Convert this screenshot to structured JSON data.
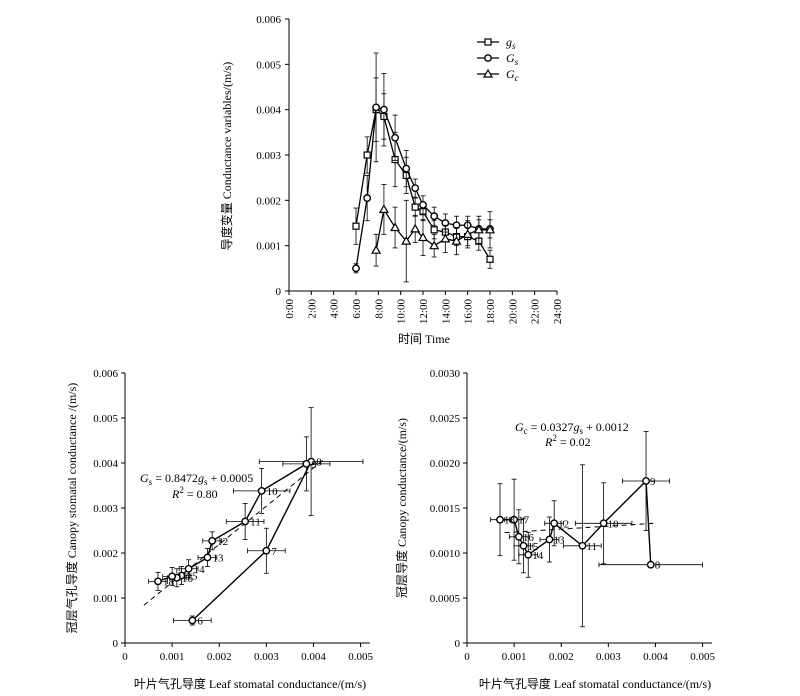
{
  "chart_data": [
    {
      "id": "top",
      "type": "line",
      "ylabel": "导度变量 Conductance variables/(m/s)",
      "xlabel": "时间 Time",
      "x_ticks": [
        "0:00",
        "2:00",
        "4:00",
        "6:00",
        "8:00",
        "10:00",
        "12:00",
        "14:00",
        "16:00",
        "18:00",
        "20:00",
        "22:00",
        "24:00"
      ],
      "y_ticks": [
        "0",
        "0.001",
        "0.002",
        "0.003",
        "0.004",
        "0.005",
        "0.006"
      ],
      "xlim": [
        0,
        24
      ],
      "ylim": [
        0,
        0.006
      ],
      "legend_position": "top-right",
      "series": [
        {
          "name": "gs",
          "name_main": "g",
          "name_sub": "s",
          "marker": "square",
          "x": [
            6,
            7,
            7.8,
            8.5,
            9.5,
            10.5,
            11.3,
            12,
            13,
            14,
            15,
            16,
            17,
            18
          ],
          "y": [
            0.00143,
            0.003,
            0.004,
            0.00385,
            0.0029,
            0.00255,
            0.00185,
            0.00175,
            0.00135,
            0.0013,
            0.0012,
            0.0012,
            0.0011,
            0.0007
          ]
        },
        {
          "name": "Gs",
          "name_main": "G",
          "name_sub": "s",
          "marker": "circle",
          "x": [
            6,
            7,
            7.8,
            8.5,
            9.5,
            10.5,
            11.3,
            12,
            13,
            14,
            15,
            16,
            17,
            18
          ],
          "y": [
            0.0005,
            0.00205,
            0.00405,
            0.004,
            0.00338,
            0.0027,
            0.00227,
            0.0019,
            0.00165,
            0.0015,
            0.00145,
            0.00145,
            0.00137,
            0.00137
          ]
        },
        {
          "name": "Gc",
          "name_main": "G",
          "name_sub": "c",
          "marker": "triangle",
          "x": [
            7.8,
            8.5,
            9.5,
            10.5,
            11.3,
            12,
            13,
            14,
            15,
            16,
            17,
            18
          ],
          "y": [
            0.0009,
            0.0018,
            0.0014,
            0.0011,
            0.00137,
            0.00118,
            0.001,
            0.00115,
            0.0011,
            0.00125,
            0.00135,
            0.00135
          ],
          "err": [
            0.00035,
            0.00055,
            0.00045,
            0.0009,
            0.0003,
            0.0004,
            0.00025,
            0.0003,
            0.0003,
            0.0003,
            0.0003,
            0.0004
          ]
        }
      ],
      "gs_err": [
        0.0004,
        0.0004,
        0.0007,
        0.0005,
        0.0006,
        0.0004,
        0.0002,
        0.0002,
        0.0002,
        0.0002,
        0.0002,
        0.0002,
        0.0002,
        0.0002
      ],
      "Gs_err": [
        0.0001,
        0.0005,
        0.0012,
        0.0008,
        0.0005,
        0.0004,
        0.0002,
        0.0002,
        0.0002,
        0.0002,
        0.0002,
        0.0002,
        0.0002,
        0.0002
      ]
    },
    {
      "id": "bottom-left",
      "type": "scatter",
      "ylabel": "冠层气孔导度 Canopy stomatal conductance /(m/s)",
      "xlabel": "叶片气孔导度 Leaf stomatal conductance/(m/s)",
      "x_ticks": [
        "0",
        "0.001",
        "0.002",
        "0.003",
        "0.004",
        "0.005"
      ],
      "y_ticks": [
        "0",
        "0.001",
        "0.002",
        "0.003",
        "0.004",
        "0.005",
        "0.006"
      ],
      "xlim": [
        0,
        0.0052
      ],
      "ylim": [
        0,
        0.006
      ],
      "equation": {
        "lhs_main": "G",
        "lhs_sub": "s",
        "mid": " = 0.8472",
        "rhs_main": "g",
        "rhs_sub": "s",
        "tail": " + 0.0005"
      },
      "r2": {
        "main": "R",
        "sup": "2",
        "tail": " = 0.80"
      },
      "trend": {
        "slope": 0.8472,
        "intercept": 0.0005,
        "x_range": [
          0.0004,
          0.0042
        ]
      },
      "points": [
        {
          "label": "6",
          "x": 0.00143,
          "y": 0.0005,
          "xerr": 0.0004,
          "yerr": 0.0001
        },
        {
          "label": "7",
          "x": 0.003,
          "y": 0.00205,
          "xerr": 0.0004,
          "yerr": 0.0005
        },
        {
          "label": "8",
          "x": 0.00395,
          "y": 0.00403,
          "xerr": 0.0011,
          "yerr": 0.0012
        },
        {
          "label": "9",
          "x": 0.00385,
          "y": 0.00398,
          "xerr": 0.0005,
          "yerr": 0.0006
        },
        {
          "label": "10",
          "x": 0.0029,
          "y": 0.00338,
          "xerr": 0.0006,
          "yerr": 0.0005
        },
        {
          "label": "11",
          "x": 0.00255,
          "y": 0.0027,
          "xerr": 0.0004,
          "yerr": 0.0004
        },
        {
          "label": "12",
          "x": 0.00185,
          "y": 0.00227,
          "xerr": 0.0002,
          "yerr": 0.0002
        },
        {
          "label": "13",
          "x": 0.00175,
          "y": 0.0019,
          "xerr": 0.0002,
          "yerr": 0.0002
        },
        {
          "label": "14",
          "x": 0.00135,
          "y": 0.00165,
          "xerr": 0.0002,
          "yerr": 0.0002
        },
        {
          "label": "15",
          "x": 0.0012,
          "y": 0.0015,
          "xerr": 0.0002,
          "yerr": 0.0002
        },
        {
          "label": "16",
          "x": 0.0011,
          "y": 0.00145,
          "xerr": 0.0002,
          "yerr": 0.0002
        },
        {
          "label": "17",
          "x": 0.001,
          "y": 0.00148,
          "xerr": 0.0002,
          "yerr": 0.0002
        },
        {
          "label": "18",
          "x": 0.0007,
          "y": 0.00137,
          "xerr": 0.0002,
          "yerr": 0.0002
        }
      ],
      "path_order": [
        "6",
        "7",
        "8",
        "9",
        "10",
        "11",
        "12",
        "13",
        "14",
        "15",
        "16",
        "17",
        "18"
      ]
    },
    {
      "id": "bottom-right",
      "type": "scatter",
      "ylabel": "冠层导度 Canopy conductance/(m/s)",
      "xlabel": "叶片气孔导度 Leaf stomatal conductance/(m/s)",
      "x_ticks": [
        "0",
        "0.001",
        "0.002",
        "0.003",
        "0.004",
        "0.005"
      ],
      "y_ticks": [
        "0",
        "0.0005",
        "0.0010",
        "0.0015",
        "0.0020",
        "0.0025",
        "0.0030"
      ],
      "xlim": [
        0,
        0.0052
      ],
      "ylim": [
        0,
        0.003
      ],
      "equation": {
        "lhs_main": "G",
        "lhs_sub": "c",
        "mid": " = 0.0327",
        "rhs_main": "g",
        "rhs_sub": "s",
        "tail": " + 0.0012"
      },
      "r2": {
        "main": "R",
        "sup": "2",
        "tail": " = 0.02"
      },
      "trend": {
        "slope": 0.0327,
        "intercept": 0.0012,
        "x_range": [
          0.0008,
          0.004
        ]
      },
      "points": [
        {
          "label": "8",
          "x": 0.0039,
          "y": 0.00087,
          "xerr": 0.0011,
          "yerr": 0.0
        },
        {
          "label": "9",
          "x": 0.0038,
          "y": 0.0018,
          "xerr": 0.0005,
          "yerr": 0.00055
        },
        {
          "label": "10",
          "x": 0.0029,
          "y": 0.00133,
          "xerr": 0.0006,
          "yerr": 0.00045
        },
        {
          "label": "11",
          "x": 0.00245,
          "y": 0.00108,
          "xerr": 0.0004,
          "yerr": 0.0009
        },
        {
          "label": "12",
          "x": 0.00185,
          "y": 0.00133,
          "xerr": 0.0002,
          "yerr": 0.00025
        },
        {
          "label": "13",
          "x": 0.00175,
          "y": 0.00115,
          "xerr": 0.0002,
          "yerr": 0.00025
        },
        {
          "label": "14",
          "x": 0.0013,
          "y": 0.00098,
          "xerr": 0.0002,
          "yerr": 0.00025
        },
        {
          "label": "15",
          "x": 0.0012,
          "y": 0.00108,
          "xerr": 0.0002,
          "yerr": 0.0003
        },
        {
          "label": "16",
          "x": 0.0011,
          "y": 0.00118,
          "xerr": 0.0002,
          "yerr": 0.0003
        },
        {
          "label": "17",
          "x": 0.001,
          "y": 0.00137,
          "xerr": 0.0002,
          "yerr": 0.00045
        },
        {
          "label": "18",
          "x": 0.0007,
          "y": 0.00137,
          "xerr": 0.0002,
          "yerr": 0.0004
        }
      ],
      "path_order": [
        "18",
        "17",
        "16",
        "15",
        "14",
        "13",
        "12",
        "11",
        "10",
        "9",
        "8"
      ]
    }
  ]
}
